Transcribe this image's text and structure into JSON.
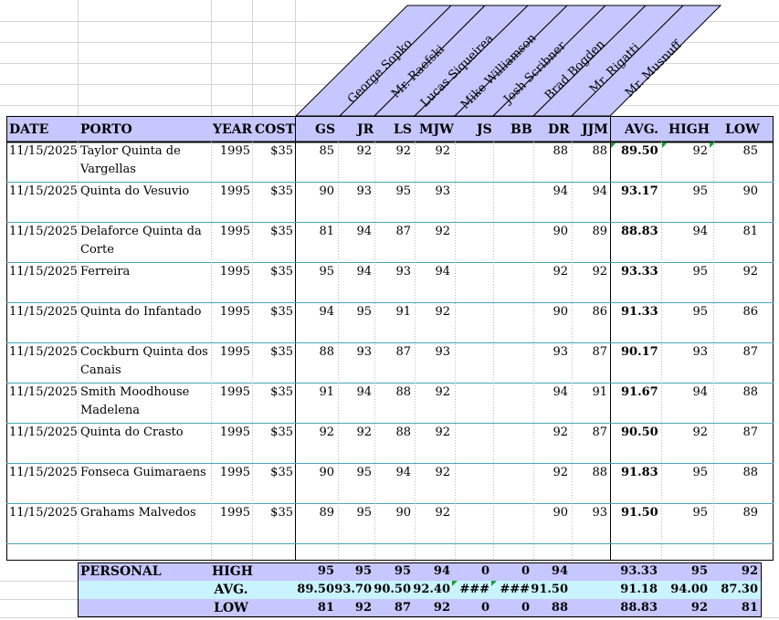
{
  "colors": {
    "header_bg": "#c6c7ff",
    "avg_row_bg": "#c9f4ff",
    "grid": "#d4d4d4",
    "border": "#000000",
    "accent_triangle": "#1e9a3a"
  },
  "tasters": [
    "George Sopko",
    "Mr. Raefski",
    "Lucas Siqueirea",
    "Mike Williamson",
    "Josh Scribner",
    "Brad Bogden",
    "Mr. Rigatti",
    "Mr. Musnuff"
  ],
  "columns": [
    "DATE",
    "PORTO",
    "YEAR",
    "COST",
    "GS",
    "JR",
    "LS",
    "MJW",
    "JS",
    "BB",
    "DR",
    "JJM",
    "AVG.",
    "HIGH",
    "LOW"
  ],
  "rows": [
    {
      "date": "11/15/2025",
      "porto": "Taylor Quinta de Vargellas",
      "year": "1995",
      "cost": "$35",
      "gs": "85",
      "jr": "92",
      "ls": "92",
      "mjw": "92",
      "js": "",
      "bb": "",
      "dr": "88",
      "jjm": "88",
      "avg": "89.50",
      "high": "92",
      "low": "85"
    },
    {
      "date": "11/15/2025",
      "porto": "Quinta do Vesuvio",
      "year": "1995",
      "cost": "$35",
      "gs": "90",
      "jr": "93",
      "ls": "95",
      "mjw": "93",
      "js": "",
      "bb": "",
      "dr": "94",
      "jjm": "94",
      "avg": "93.17",
      "high": "95",
      "low": "90"
    },
    {
      "date": "11/15/2025",
      "porto": "Delaforce Quinta da Corte",
      "year": "1995",
      "cost": "$35",
      "gs": "81",
      "jr": "94",
      "ls": "87",
      "mjw": "92",
      "js": "",
      "bb": "",
      "dr": "90",
      "jjm": "89",
      "avg": "88.83",
      "high": "94",
      "low": "81"
    },
    {
      "date": "11/15/2025",
      "porto": "Ferreira",
      "year": "1995",
      "cost": "$35",
      "gs": "95",
      "jr": "94",
      "ls": "93",
      "mjw": "94",
      "js": "",
      "bb": "",
      "dr": "92",
      "jjm": "92",
      "avg": "93.33",
      "high": "95",
      "low": "92"
    },
    {
      "date": "11/15/2025",
      "porto": "Quinta do Infantado",
      "year": "1995",
      "cost": "$35",
      "gs": "94",
      "jr": "95",
      "ls": "91",
      "mjw": "92",
      "js": "",
      "bb": "",
      "dr": "90",
      "jjm": "86",
      "avg": "91.33",
      "high": "95",
      "low": "86"
    },
    {
      "date": "11/15/2025",
      "porto": "Cockburn Quinta dos Canais",
      "year": "1995",
      "cost": "$35",
      "gs": "88",
      "jr": "93",
      "ls": "87",
      "mjw": "93",
      "js": "",
      "bb": "",
      "dr": "93",
      "jjm": "87",
      "avg": "90.17",
      "high": "93",
      "low": "87"
    },
    {
      "date": "11/15/2025",
      "porto": "Smith Moodhouse Madelena",
      "year": "1995",
      "cost": "$35",
      "gs": "91",
      "jr": "94",
      "ls": "88",
      "mjw": "92",
      "js": "",
      "bb": "",
      "dr": "94",
      "jjm": "91",
      "avg": "91.67",
      "high": "94",
      "low": "88"
    },
    {
      "date": "11/15/2025",
      "porto": "Quinta do Crasto",
      "year": "1995",
      "cost": "$35",
      "gs": "92",
      "jr": "92",
      "ls": "88",
      "mjw": "92",
      "js": "",
      "bb": "",
      "dr": "92",
      "jjm": "87",
      "avg": "90.50",
      "high": "92",
      "low": "87"
    },
    {
      "date": "11/15/2025",
      "porto": "Fonseca Guimaraens",
      "year": "1995",
      "cost": "$35",
      "gs": "90",
      "jr": "95",
      "ls": "94",
      "mjw": "92",
      "js": "",
      "bb": "",
      "dr": "92",
      "jjm": "88",
      "avg": "91.83",
      "high": "95",
      "low": "88"
    },
    {
      "date": "11/15/2025",
      "porto": "Grahams Malvedos",
      "year": "1995",
      "cost": "$35",
      "gs": "89",
      "jr": "95",
      "ls": "90",
      "mjw": "92",
      "js": "",
      "bb": "",
      "dr": "90",
      "jjm": "93",
      "avg": "91.50",
      "high": "95",
      "low": "89"
    }
  ],
  "summary": {
    "section_label": "PERSONAL",
    "rows": [
      {
        "label": "HIGH",
        "gs": "95",
        "jr": "95",
        "ls": "95",
        "mjw": "94",
        "js": "0",
        "bb": "0",
        "dr": "94",
        "jjm": "",
        "avg": "93.33",
        "high": "95",
        "low": "92"
      },
      {
        "label": "AVG.",
        "gs": "89.50",
        "jr": "93.70",
        "ls": "90.50",
        "mjw": "92.40",
        "js": "###",
        "bb": "###",
        "dr": "91.50",
        "jjm": "",
        "avg": "91.18",
        "high": "94.00",
        "low": "87.30"
      },
      {
        "label": "LOW",
        "gs": "81",
        "jr": "92",
        "ls": "87",
        "mjw": "92",
        "js": "0",
        "bb": "0",
        "dr": "88",
        "jjm": "",
        "avg": "88.83",
        "high": "92",
        "low": "81"
      }
    ]
  }
}
